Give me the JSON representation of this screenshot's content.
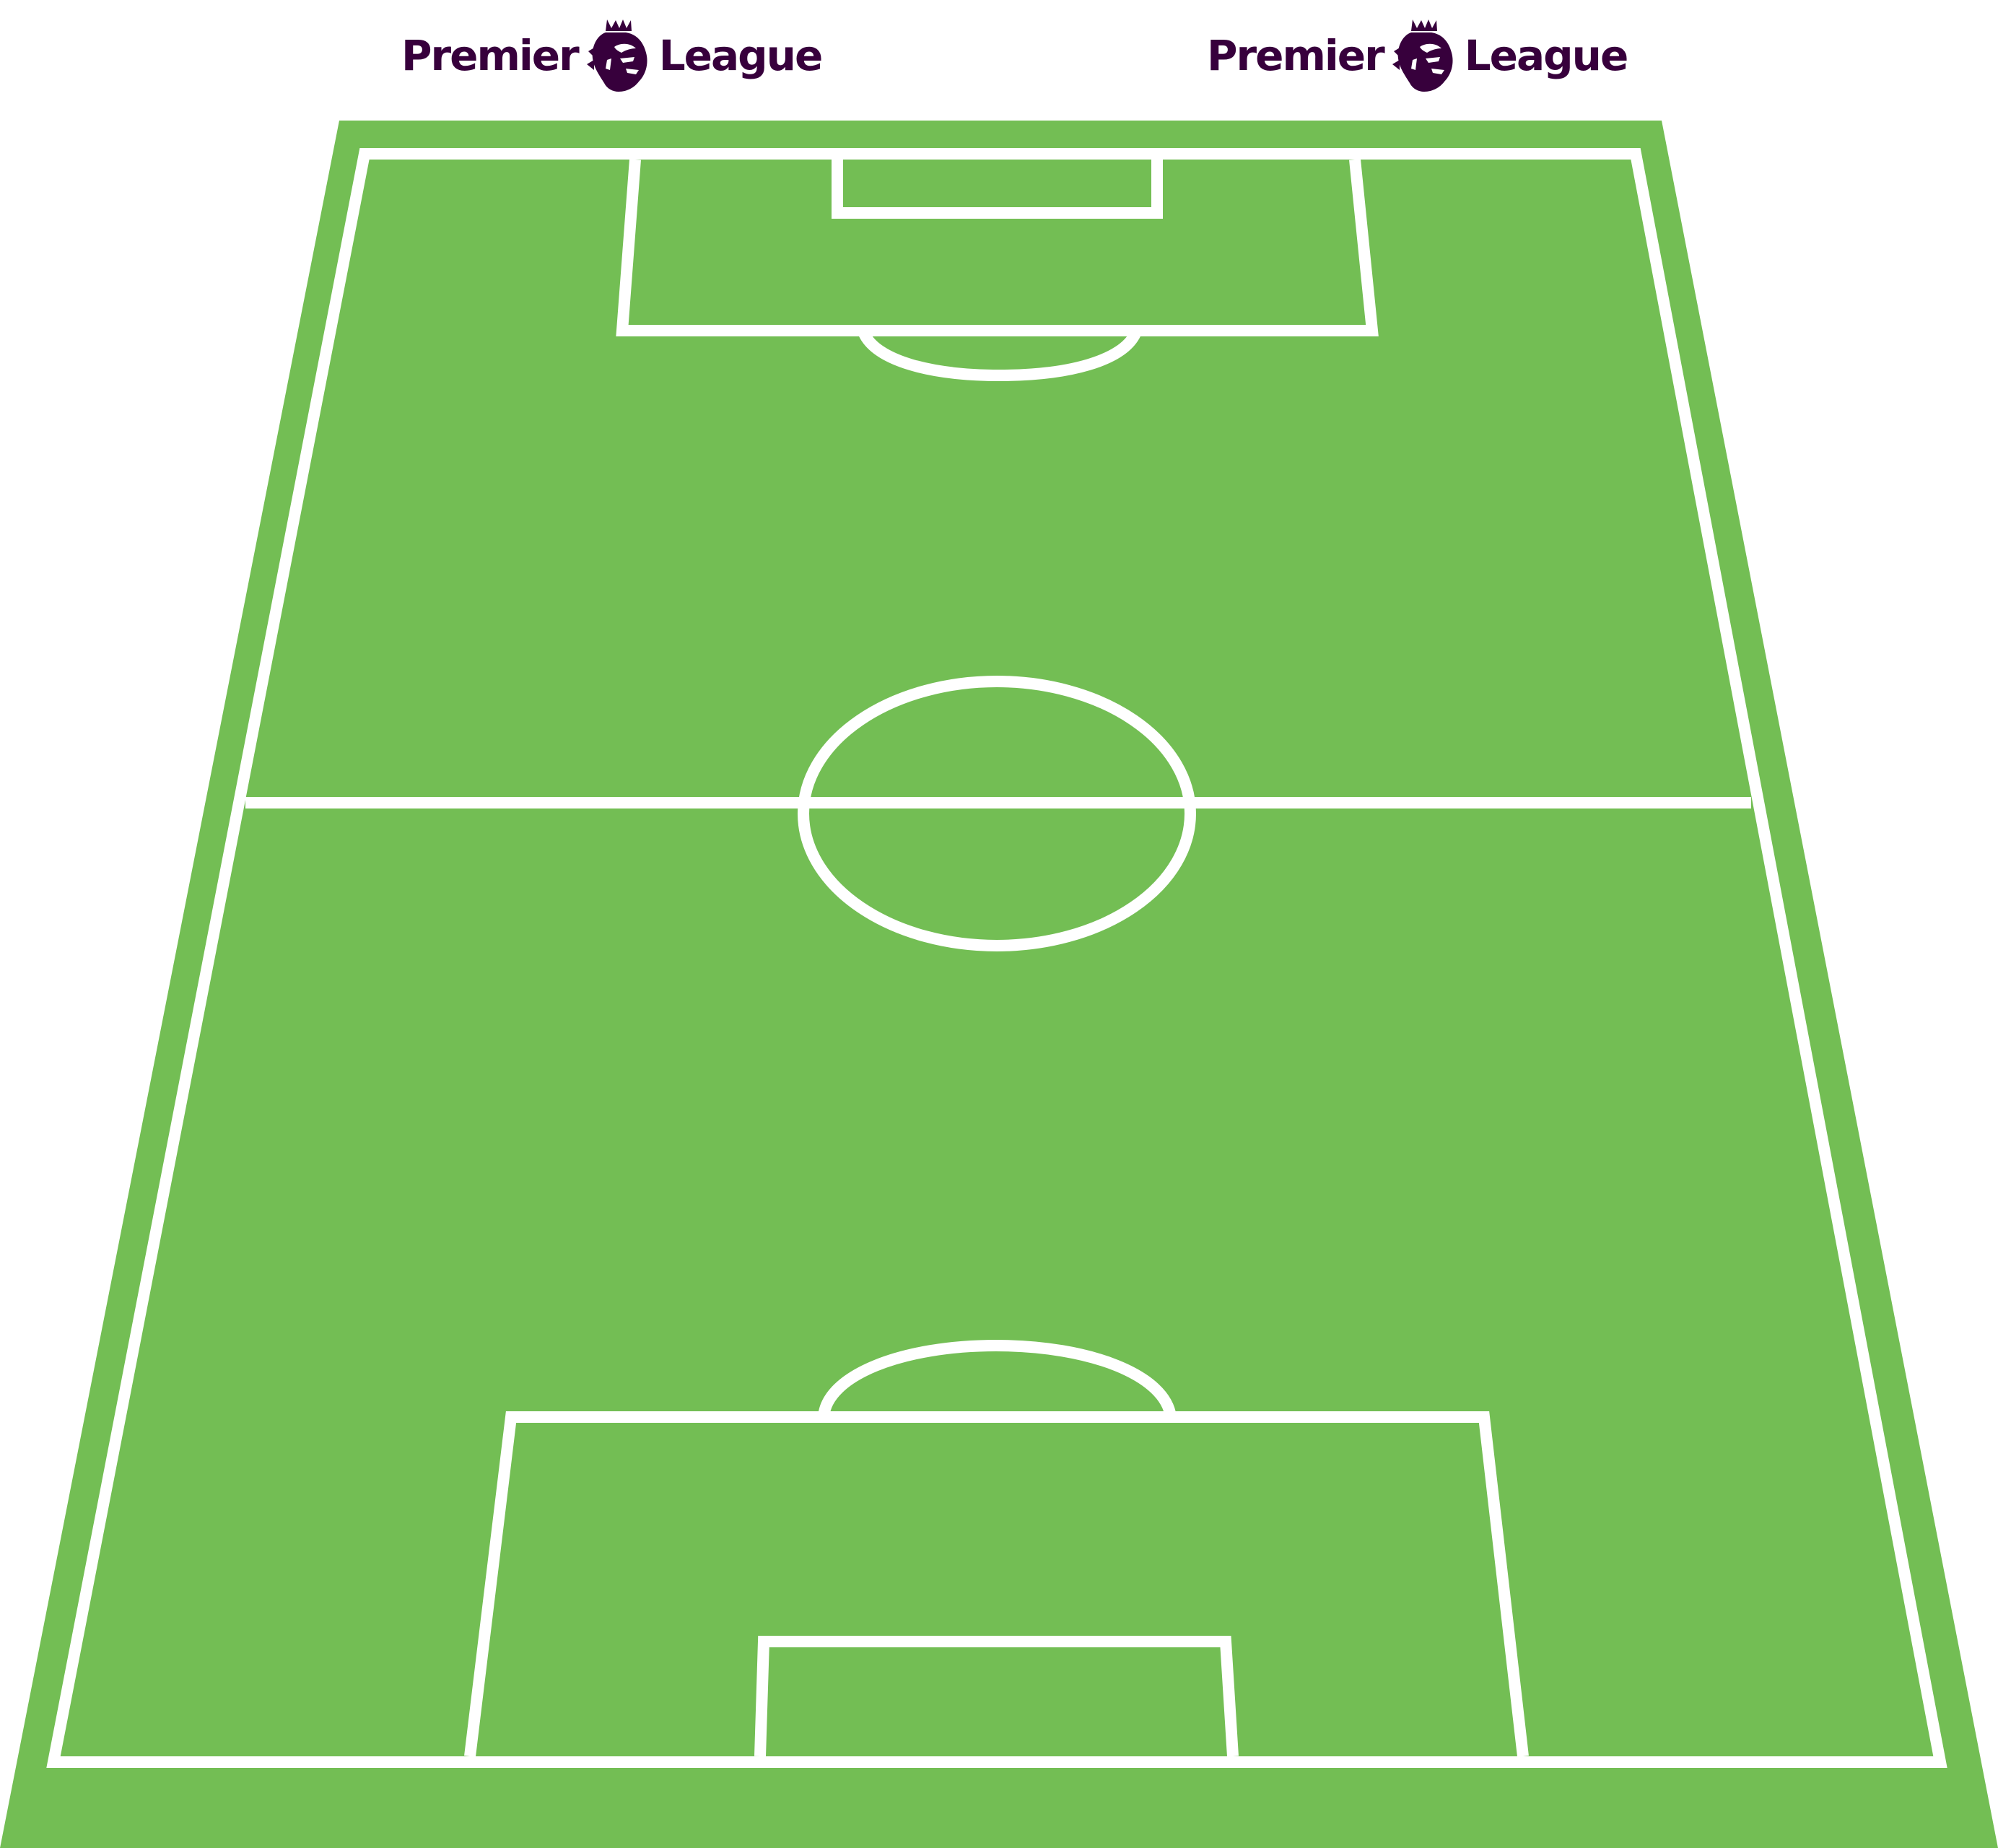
{
  "logos": [
    {
      "word_left": "Premier",
      "word_right": "League",
      "icon": "lion-crest-icon"
    },
    {
      "word_left": "Premier",
      "word_right": "League",
      "icon": "lion-crest-icon"
    }
  ],
  "colors": {
    "brand_purple": "#37003c",
    "pitch_green": "#73be54",
    "line_white": "#ffffff",
    "background": "#ffffff"
  }
}
